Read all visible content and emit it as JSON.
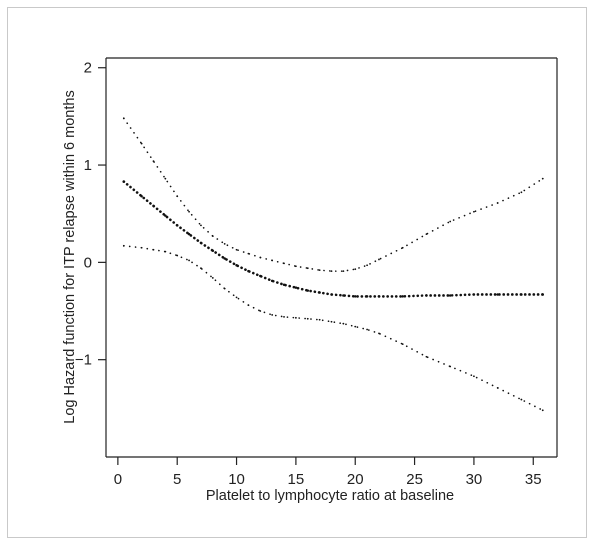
{
  "chart_data": {
    "type": "line",
    "title": "",
    "xlabel": "Platelet to lymphocyte ratio at baseline",
    "ylabel": "Log Hazard function for ITP relapse within 6 months",
    "xlim": [
      -1,
      37
    ],
    "ylim": [
      -2.0,
      2.1
    ],
    "xticks": [
      "0",
      "5",
      "10",
      "15",
      "20",
      "25",
      "30",
      "35"
    ],
    "yticks": [
      "-1",
      "0",
      "1",
      "2"
    ],
    "grid": false,
    "legend": false,
    "series": [
      {
        "style": "dotted-heavy",
        "x": [
          0.5,
          2,
          3,
          4,
          5,
          6,
          7,
          8,
          9,
          10,
          11,
          12,
          13,
          14,
          15,
          16,
          17,
          18,
          19,
          20,
          21,
          22,
          24,
          26,
          28,
          30,
          32,
          34,
          35.8
        ],
        "values": [
          0.83,
          0.68,
          0.58,
          0.48,
          0.38,
          0.29,
          0.2,
          0.12,
          0.04,
          -0.03,
          -0.09,
          -0.14,
          -0.19,
          -0.23,
          -0.26,
          -0.29,
          -0.31,
          -0.33,
          -0.34,
          -0.35,
          -0.35,
          -0.35,
          -0.35,
          -0.34,
          -0.34,
          -0.33,
          -0.33,
          -0.33,
          -0.33
        ]
      },
      {
        "style": "dotted-light",
        "x": [
          0.5,
          2,
          3,
          4,
          5,
          6,
          7,
          8,
          9,
          10,
          11,
          12,
          13,
          14,
          15,
          16,
          17,
          18,
          19,
          20,
          21,
          22,
          24,
          26,
          28,
          30,
          32,
          34,
          35.8
        ],
        "values": [
          1.48,
          1.22,
          1.04,
          0.86,
          0.68,
          0.52,
          0.38,
          0.27,
          0.19,
          0.13,
          0.09,
          0.05,
          0.02,
          -0.01,
          -0.04,
          -0.06,
          -0.08,
          -0.09,
          -0.09,
          -0.07,
          -0.03,
          0.03,
          0.15,
          0.29,
          0.42,
          0.52,
          0.61,
          0.72,
          0.86
        ]
      },
      {
        "style": "dotted-light",
        "x": [
          0.5,
          2,
          3,
          4,
          5,
          6,
          7,
          8,
          9,
          10,
          11,
          12,
          13,
          14,
          15,
          16,
          17,
          18,
          19,
          20,
          21,
          22,
          24,
          26,
          28,
          30,
          32,
          34,
          35.8
        ],
        "values": [
          0.17,
          0.15,
          0.13,
          0.11,
          0.07,
          0.02,
          -0.06,
          -0.16,
          -0.27,
          -0.36,
          -0.44,
          -0.5,
          -0.54,
          -0.56,
          -0.57,
          -0.58,
          -0.59,
          -0.61,
          -0.63,
          -0.66,
          -0.69,
          -0.73,
          -0.84,
          -0.97,
          -1.07,
          -1.17,
          -1.29,
          -1.41,
          -1.52
        ]
      }
    ]
  }
}
